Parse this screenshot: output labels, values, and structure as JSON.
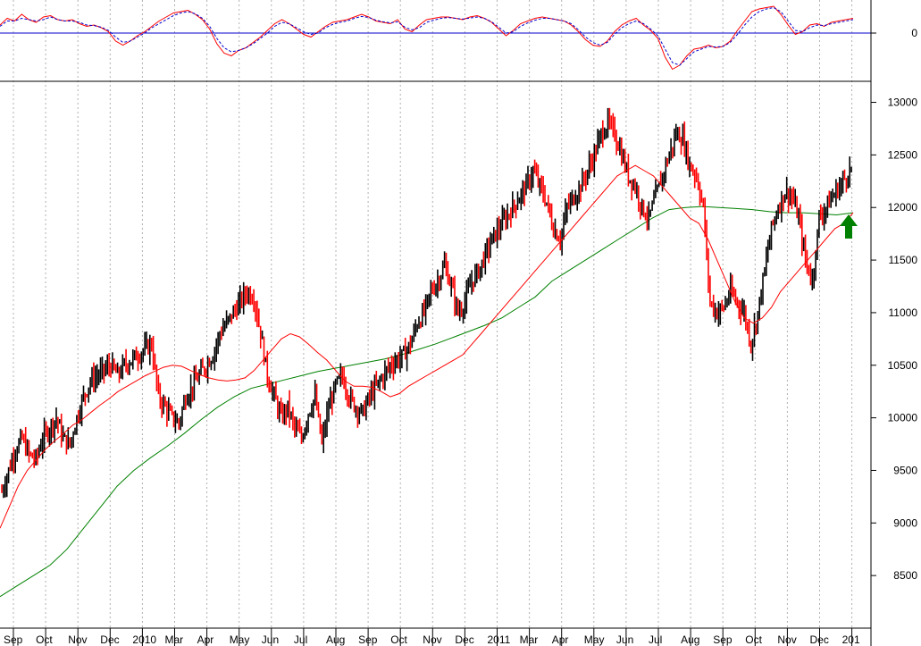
{
  "chart_data": [
    {
      "type": "line",
      "panel": "oscillator",
      "title": "",
      "y_tick_labels": [
        "0"
      ],
      "zero_line": true,
      "series": [
        {
          "color": "#ff0000",
          "style": "solid",
          "values": [
            0.3,
            0.55,
            0.45,
            0.7,
            0.5,
            0.4,
            0.6,
            0.65,
            0.5,
            0.45,
            0.5,
            0.35,
            0.25,
            0.3,
            0.2,
            0.05,
            -0.3,
            -0.45,
            -0.3,
            -0.1,
            0.05,
            0.25,
            0.45,
            0.6,
            0.75,
            0.8,
            0.85,
            0.7,
            0.5,
            0.15,
            -0.4,
            -0.75,
            -0.85,
            -0.65,
            -0.55,
            -0.35,
            -0.15,
            0.1,
            0.35,
            0.5,
            0.35,
            0.15,
            -0.05,
            -0.15,
            0.05,
            0.25,
            0.4,
            0.45,
            0.5,
            0.6,
            0.7,
            0.6,
            0.45,
            0.4,
            0.35,
            0.5,
            0.15,
            0.05,
            0.3,
            0.5,
            0.55,
            0.6,
            0.6,
            0.55,
            0.5,
            0.6,
            0.65,
            0.55,
            0.4,
            0.15,
            -0.1,
            0.1,
            0.35,
            0.45,
            0.55,
            0.6,
            0.55,
            0.5,
            0.45,
            0.3,
            0.05,
            -0.25,
            -0.45,
            -0.5,
            -0.3,
            0.05,
            0.3,
            0.45,
            0.55,
            0.3,
            0.1,
            -0.2,
            -0.9,
            -1.35,
            -1.2,
            -0.85,
            -0.6,
            -0.55,
            -0.45,
            -0.55,
            -0.5,
            -0.3,
            0.1,
            0.45,
            0.8,
            0.9,
            0.95,
            1.0,
            0.7,
            0.3,
            -0.05,
            0.05,
            0.3,
            0.35,
            0.25,
            0.4,
            0.45,
            0.5,
            0.55
          ]
        },
        {
          "color": "#0000cc",
          "style": "dashed",
          "values": [
            0.25,
            0.45,
            0.45,
            0.55,
            0.5,
            0.45,
            0.5,
            0.6,
            0.5,
            0.45,
            0.45,
            0.4,
            0.3,
            0.28,
            0.22,
            0.1,
            -0.15,
            -0.35,
            -0.3,
            -0.15,
            0.0,
            0.2,
            0.35,
            0.5,
            0.65,
            0.75,
            0.8,
            0.72,
            0.55,
            0.25,
            -0.2,
            -0.55,
            -0.7,
            -0.65,
            -0.55,
            -0.4,
            -0.2,
            0.0,
            0.25,
            0.4,
            0.35,
            0.2,
            0.05,
            -0.05,
            0.0,
            0.2,
            0.32,
            0.4,
            0.45,
            0.55,
            0.62,
            0.58,
            0.48,
            0.42,
            0.38,
            0.42,
            0.22,
            0.12,
            0.2,
            0.4,
            0.48,
            0.55,
            0.58,
            0.55,
            0.52,
            0.56,
            0.6,
            0.55,
            0.42,
            0.22,
            0.0,
            0.05,
            0.25,
            0.38,
            0.48,
            0.55,
            0.55,
            0.5,
            0.45,
            0.35,
            0.12,
            -0.15,
            -0.35,
            -0.45,
            -0.35,
            -0.05,
            0.2,
            0.35,
            0.45,
            0.35,
            0.15,
            -0.1,
            -0.6,
            -1.1,
            -1.2,
            -0.95,
            -0.7,
            -0.6,
            -0.5,
            -0.52,
            -0.5,
            -0.35,
            -0.05,
            0.3,
            0.6,
            0.8,
            0.9,
            0.95,
            0.8,
            0.45,
            0.1,
            0.05,
            0.2,
            0.3,
            0.28,
            0.35,
            0.4,
            0.45,
            0.5
          ]
        }
      ]
    },
    {
      "type": "line",
      "panel": "price",
      "title": "",
      "xlabel": "",
      "ylabel": "",
      "ylim": [
        8000,
        13200
      ],
      "y_ticks": [
        8500,
        9000,
        9500,
        10000,
        10500,
        11000,
        11500,
        12000,
        12500,
        13000
      ],
      "x_tick_labels": [
        "Sep",
        "Oct",
        "Nov",
        "Dec",
        "2010",
        "Mar",
        "Apr",
        "May",
        "Jun",
        "Jul",
        "Aug",
        "Sep",
        "Oct",
        "Nov",
        "Dec",
        "2011",
        "Mar",
        "Apr",
        "May",
        "Jun",
        "Jul",
        "Aug",
        "Sep",
        "Oct",
        "Nov",
        "Dec",
        "201"
      ],
      "grid": "vertical-dotted",
      "series": [
        {
          "kind": "price-bars",
          "color_up": "#000000",
          "color_down": "#ff0000",
          "values": [
            9300,
            9500,
            9700,
            9800,
            9650,
            9600,
            9800,
            9900,
            10000,
            9800,
            9750,
            10000,
            10200,
            10350,
            10400,
            10450,
            10500,
            10400,
            10500,
            10550,
            10600,
            10650,
            10700,
            10200,
            10100,
            10000,
            9950,
            10200,
            10300,
            10400,
            10500,
            10600,
            10800,
            10900,
            11000,
            11100,
            11200,
            11150,
            10800,
            10400,
            10200,
            10000,
            10100,
            9900,
            9800,
            10050,
            10200,
            9750,
            10100,
            10300,
            10400,
            10200,
            10100,
            10050,
            10200,
            10300,
            10400,
            10500,
            10550,
            10600,
            10700,
            10900,
            11000,
            11200,
            11300,
            11450,
            11250,
            11000,
            11100,
            11300,
            11400,
            11550,
            11700,
            11800,
            11900,
            12000,
            12100,
            12200,
            12350,
            12200,
            12050,
            11800,
            11700,
            12000,
            12100,
            12200,
            12350,
            12500,
            12700,
            12800,
            12700,
            12500,
            12300,
            12200,
            12000,
            11900,
            12100,
            12300,
            12500,
            12700,
            12650,
            12400,
            12300,
            12000,
            11100,
            11000,
            11050,
            11200,
            11100,
            11000,
            10700,
            11000,
            11400,
            11800,
            12000,
            12150,
            12100,
            11900,
            11500,
            11300,
            11900,
            12000,
            12100,
            12200,
            12300,
            12400
          ]
        },
        {
          "kind": "short-ma",
          "color": "#ff0000",
          "values": [
            8950,
            9150,
            9350,
            9500,
            9600,
            9700,
            9780,
            9850,
            9930,
            9980,
            10050,
            10120,
            10180,
            10250,
            10300,
            10350,
            10400,
            10440,
            10480,
            10500,
            10490,
            10450,
            10410,
            10380,
            10360,
            10350,
            10360,
            10380,
            10450,
            10550,
            10650,
            10750,
            10800,
            10770,
            10700,
            10620,
            10550,
            10450,
            10350,
            10300,
            10300,
            10290,
            10250,
            10200,
            10230,
            10300,
            10350,
            10400,
            10450,
            10500,
            10550,
            10600,
            10700,
            10800,
            10900,
            11000,
            11100,
            11200,
            11300,
            11400,
            11500,
            11600,
            11700,
            11800,
            11900,
            12000,
            12100,
            12200,
            12300,
            12350,
            12400,
            12350,
            12300,
            12200,
            12100,
            12000,
            11900,
            11850,
            11700,
            11500,
            11300,
            11100,
            10950,
            10900,
            10950,
            11050,
            11200,
            11300,
            11400,
            11500,
            11600,
            11700,
            11800,
            11850,
            11950
          ]
        },
        {
          "kind": "long-ma",
          "color": "#008000",
          "values": [
            8300,
            8400,
            8500,
            8600,
            8750,
            8950,
            9150,
            9350,
            9500,
            9620,
            9730,
            9850,
            9980,
            10100,
            10200,
            10280,
            10320,
            10360,
            10400,
            10440,
            10470,
            10500,
            10530,
            10560,
            10600,
            10650,
            10700,
            10760,
            10820,
            10880,
            10950,
            11050,
            11150,
            11300,
            11400,
            11500,
            11600,
            11700,
            11800,
            11900,
            11980,
            12000,
            12010,
            12000,
            11990,
            11980,
            11960,
            11950,
            11950,
            11940,
            11930,
            11950
          ]
        }
      ],
      "annotations": [
        {
          "kind": "up-arrow",
          "color": "#008000"
        }
      ]
    }
  ]
}
